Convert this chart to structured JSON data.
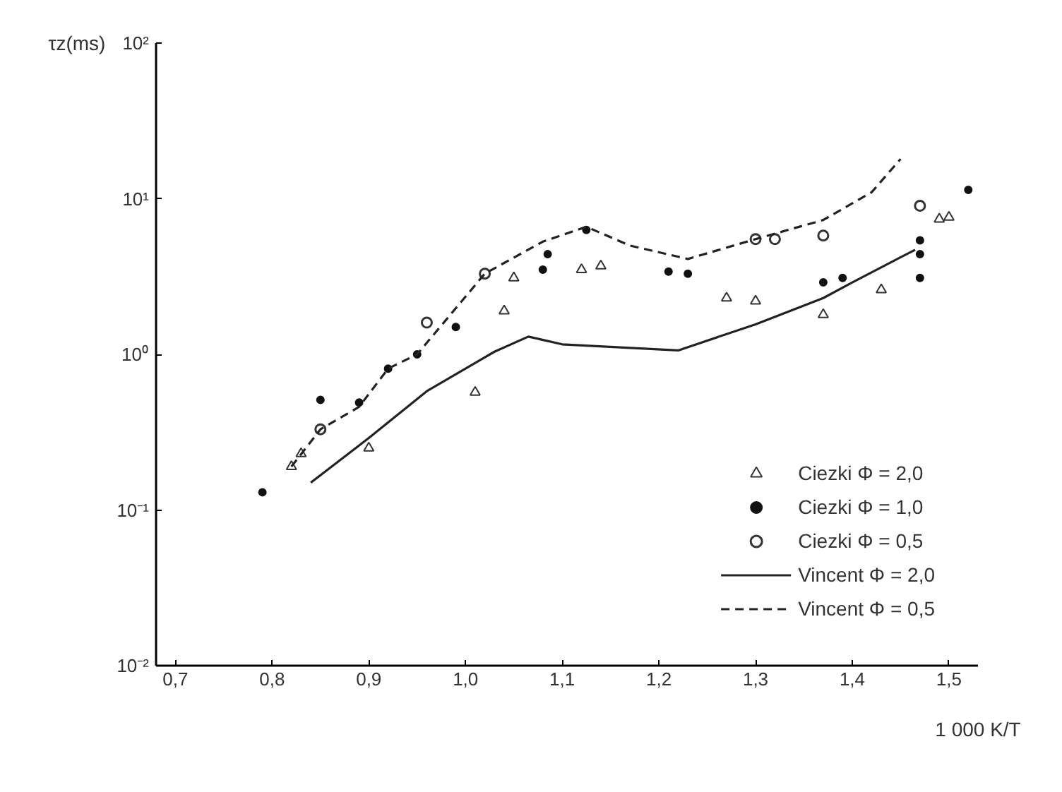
{
  "chart_data": {
    "type": "scatter",
    "xlabel": "1 000 K/T",
    "ylabel": "τz(ms)",
    "log": "y",
    "xlim": [
      0.68,
      1.53
    ],
    "ylim": [
      0.01,
      100
    ],
    "xticks": [
      {
        "value": 0.7,
        "label": "0,7"
      },
      {
        "value": 0.8,
        "label": "0,8"
      },
      {
        "value": 0.9,
        "label": "0,9"
      },
      {
        "value": 1.0,
        "label": "1,0"
      },
      {
        "value": 1.1,
        "label": "1,1"
      },
      {
        "value": 1.2,
        "label": "1,2"
      },
      {
        "value": 1.3,
        "label": "1,3"
      },
      {
        "value": 1.4,
        "label": "1,4"
      },
      {
        "value": 1.5,
        "label": "1,5"
      }
    ],
    "yticks": [
      {
        "value": 0.01,
        "label": "10⁻²"
      },
      {
        "value": 0.1,
        "label": "10⁻¹"
      },
      {
        "value": 1,
        "label": "10⁰"
      },
      {
        "value": 10,
        "label": "10¹"
      },
      {
        "value": 100,
        "label": "10²"
      }
    ],
    "grid": false,
    "legend": "bottom right",
    "series": [
      {
        "name": "Ciezki Φ = 2,0",
        "type": "scatter",
        "marker": "triangle",
        "color": "#333333",
        "x": [
          0.82,
          0.83,
          0.9,
          1.01,
          1.04,
          1.05,
          1.12,
          1.14,
          1.27,
          1.3,
          1.37,
          1.43,
          1.49,
          1.5
        ],
        "values": [
          0.19,
          0.23,
          0.25,
          0.57,
          1.9,
          3.1,
          3.5,
          3.7,
          2.3,
          2.2,
          1.8,
          2.6,
          7.4,
          7.6
        ]
      },
      {
        "name": "Ciezki Φ = 1,0",
        "type": "scatter",
        "marker": "circle",
        "color": "#111111",
        "x": [
          0.79,
          0.85,
          0.89,
          0.92,
          0.95,
          0.99,
          1.08,
          1.085,
          1.125,
          1.21,
          1.23,
          1.37,
          1.39,
          1.47,
          1.47,
          1.47,
          1.52
        ],
        "values": [
          0.13,
          0.51,
          0.49,
          0.81,
          1.0,
          1.5,
          3.5,
          4.4,
          6.3,
          3.4,
          3.3,
          2.9,
          3.1,
          5.4,
          4.4,
          3.1,
          11.4
        ]
      },
      {
        "name": "Ciezki Φ = 0,5",
        "type": "scatter",
        "marker": "circle_open",
        "color": "#333333",
        "x": [
          0.85,
          0.96,
          1.02,
          1.3,
          1.32,
          1.37,
          1.47
        ],
        "values": [
          0.33,
          1.6,
          3.3,
          5.5,
          5.5,
          5.8,
          9.0
        ]
      },
      {
        "name": "Vincent Φ = 2,0",
        "type": "line",
        "line_style": "solid",
        "color": "#222222",
        "x": [
          0.84,
          0.9,
          0.96,
          1.03,
          1.065,
          1.1,
          1.22,
          1.3,
          1.37,
          1.4,
          1.465
        ],
        "values": [
          0.15,
          0.29,
          0.58,
          1.04,
          1.3,
          1.16,
          1.06,
          1.56,
          2.3,
          2.9,
          4.7
        ]
      },
      {
        "name": "Vincent Φ = 0,5",
        "type": "line",
        "line_style": "dashed",
        "color": "#222222",
        "x": [
          0.82,
          0.85,
          0.89,
          0.92,
          0.95,
          1.02,
          1.08,
          1.125,
          1.17,
          1.23,
          1.3,
          1.37,
          1.42,
          1.45
        ],
        "values": [
          0.19,
          0.33,
          0.46,
          0.81,
          1.0,
          3.3,
          5.3,
          6.6,
          5.0,
          4.1,
          5.5,
          7.3,
          11,
          18
        ]
      }
    ]
  }
}
